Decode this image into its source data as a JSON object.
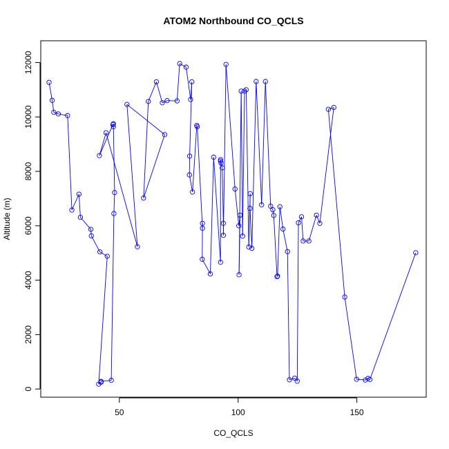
{
  "chart_data": {
    "type": "line",
    "title": "ATOM2 Northbound CO_QCLS",
    "xlabel": "CO_QCLS",
    "ylabel": "Altitude (m)",
    "xlim": [
      16.9,
      179.2
    ],
    "ylim": [
      -300,
      12800
    ],
    "x_ticks": [
      50,
      100,
      150
    ],
    "y_ticks": [
      0,
      2000,
      4000,
      6000,
      8000,
      10000,
      12000
    ],
    "grid": false,
    "legend": "none",
    "line_color": "#0000ff",
    "marker": "open-circle",
    "series": [
      {
        "x": [
          20.4,
          21.7,
          22.4,
          24.3,
          28.2,
          30.0,
          33.0,
          33.6,
          38.0,
          38.2,
          41.8,
          44.9,
          41.3,
          42.3,
          42.3,
          46.6,
          47.7,
          48.0,
          47.5,
          47.5,
          47.3,
          41.6,
          44.4,
          57.6,
          53.2,
          69.1,
          60.2,
          62.2,
          65.6,
          68.1,
          70.1,
          74.3,
          75.4,
          78.1,
          80.0,
          80.5,
          79.6,
          79.5,
          80.8,
          82.6,
          82.8,
          85.0,
          85.0,
          84.9,
          88.3,
          89.7,
          92.6,
          92.6,
          92.6,
          92.8,
          93.3,
          93.8,
          93.8,
          94.9,
          98.7,
          100.3,
          100.8,
          100.4,
          101.3,
          101.9,
          102.7,
          103.4,
          104.5,
          105.1,
          105.0,
          105.8,
          107.6,
          109.9,
          111.5,
          113.7,
          114.6,
          115.0,
          116.4,
          116.6,
          117.6,
          118.9,
          120.8,
          121.6,
          123.8,
          124.9,
          125.4,
          126.7,
          127.4,
          129.8,
          133.0,
          134.4,
          140.3,
          138.0,
          144.9,
          149.9,
          153.6,
          154.7,
          155.5,
          174.8
        ],
        "y": [
          11270,
          10610,
          10170,
          10110,
          10050,
          6580,
          7160,
          6310,
          5870,
          5630,
          5040,
          4880,
          180,
          250,
          280,
          320,
          6450,
          7220,
          9640,
          9750,
          9720,
          8580,
          9420,
          5230,
          10460,
          9350,
          7020,
          10570,
          11290,
          10520,
          10600,
          10590,
          11960,
          11830,
          10640,
          11290,
          8560,
          7870,
          7240,
          9690,
          9640,
          5910,
          6090,
          4770,
          4230,
          8520,
          4660,
          8430,
          8380,
          8310,
          8130,
          6090,
          5650,
          11930,
          7350,
          6000,
          6390,
          4200,
          10950,
          5620,
          10950,
          11000,
          5220,
          7180,
          6640,
          5170,
          11300,
          6770,
          11300,
          6720,
          6590,
          6380,
          4130,
          4150,
          6700,
          5880,
          5050,
          340,
          400,
          290,
          6110,
          6330,
          5440,
          5440,
          6390,
          6090,
          10350,
          10280,
          3380,
          360,
          330,
          390,
          350,
          5010
        ],
        "order": [
          0,
          1,
          2,
          3,
          4,
          5,
          6,
          7,
          8,
          9,
          10,
          11,
          12,
          13,
          14,
          15,
          16,
          17,
          18,
          19,
          20,
          21,
          22,
          23,
          24,
          25,
          26,
          27,
          28,
          29,
          30,
          31,
          32,
          33,
          34,
          35,
          36,
          37,
          38,
          39,
          40,
          41,
          42,
          43,
          44,
          45,
          46,
          47,
          48,
          49,
          50,
          51,
          52,
          53,
          54,
          55,
          56,
          57,
          58,
          59,
          60,
          61,
          62,
          63,
          64,
          65,
          66,
          67,
          68,
          69,
          70,
          71,
          72,
          73,
          74,
          75,
          76,
          77,
          78,
          79,
          80,
          81,
          82,
          83,
          84,
          85,
          86,
          87,
          88,
          89,
          90,
          91,
          92,
          93
        ]
      }
    ]
  }
}
